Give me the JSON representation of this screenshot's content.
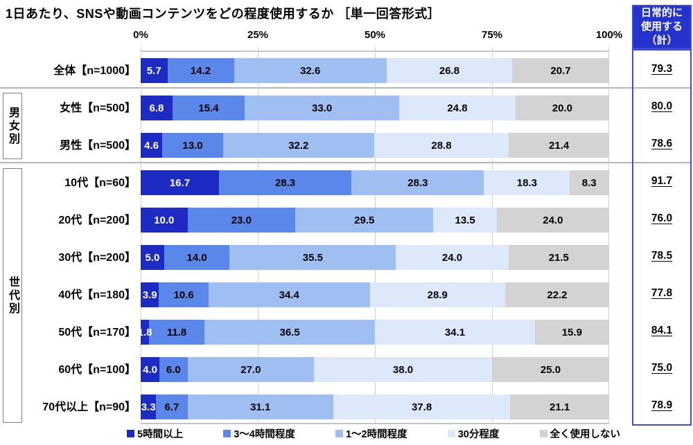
{
  "summary": {
    "header": "日常的に\n使用する\n（計）"
  },
  "groups": [
    {
      "label": "男女別"
    },
    {
      "label": "世代別"
    }
  ],
  "legend": [
    {
      "label": "5時間以上",
      "color": "#1e2bc3",
      "text_color": "#ffffff"
    },
    {
      "label": "3～4時間程度",
      "color": "#5b87ea",
      "text_color": "#000000"
    },
    {
      "label": "1～2時間程度",
      "color": "#9fbef2",
      "text_color": "#000000"
    },
    {
      "label": "30分程度",
      "color": "#dde8fa",
      "text_color": "#000000"
    },
    {
      "label": "全く使用しない",
      "color": "#d3d3d3",
      "text_color": "#000000"
    }
  ],
  "colors": {
    "header_bg": "#2433cc",
    "box_border": "#4449d8"
  },
  "chart_data": {
    "type": "bar",
    "orientation": "horizontal-stacked",
    "title": "1日あたり、SNSや動画コンテンツをどの程度使用するか ［単一回答形式］",
    "x_ticks": [
      "0%",
      "25%",
      "50%",
      "75%",
      "100%"
    ],
    "xlim": [
      0,
      100
    ],
    "grid": true,
    "legend_position": "bottom",
    "summary_column_label": "日常的に使用する（計）",
    "series_names": [
      "5時間以上",
      "3～4時間程度",
      "1～2時間程度",
      "30分程度",
      "全く使用しない"
    ],
    "rows": [
      {
        "label": "全体【n=1000】",
        "group": null,
        "values": [
          5.7,
          14.2,
          32.6,
          26.8,
          20.7
        ],
        "total": 79.3
      },
      {
        "label": "女性【n=500】",
        "group": "男女別",
        "values": [
          6.8,
          15.4,
          33.0,
          24.8,
          20.0
        ],
        "total": 80.0
      },
      {
        "label": "男性【n=500】",
        "group": "男女別",
        "values": [
          4.6,
          13.0,
          32.2,
          28.8,
          21.4
        ],
        "total": 78.6
      },
      {
        "label": "10代【n=60】",
        "group": "世代別",
        "values": [
          16.7,
          28.3,
          28.3,
          18.3,
          8.3
        ],
        "total": 91.7
      },
      {
        "label": "20代【n=200】",
        "group": "世代別",
        "values": [
          10.0,
          23.0,
          29.5,
          13.5,
          24.0
        ],
        "total": 76.0
      },
      {
        "label": "30代【n=200】",
        "group": "世代別",
        "values": [
          5.0,
          14.0,
          35.5,
          24.0,
          21.5
        ],
        "total": 78.5
      },
      {
        "label": "40代【n=180】",
        "group": "世代別",
        "values": [
          3.9,
          10.6,
          34.4,
          28.9,
          22.2
        ],
        "total": 77.8
      },
      {
        "label": "50代【n=170】",
        "group": "世代別",
        "values": [
          1.8,
          11.8,
          36.5,
          34.1,
          15.9
        ],
        "total": 84.1
      },
      {
        "label": "60代【n=100】",
        "group": "世代別",
        "values": [
          4.0,
          6.0,
          27.0,
          38.0,
          25.0
        ],
        "total": 75.0
      },
      {
        "label": "70代以上【n=90】",
        "group": "世代別",
        "values": [
          3.3,
          6.7,
          31.1,
          37.8,
          21.1
        ],
        "total": 78.9
      }
    ]
  }
}
